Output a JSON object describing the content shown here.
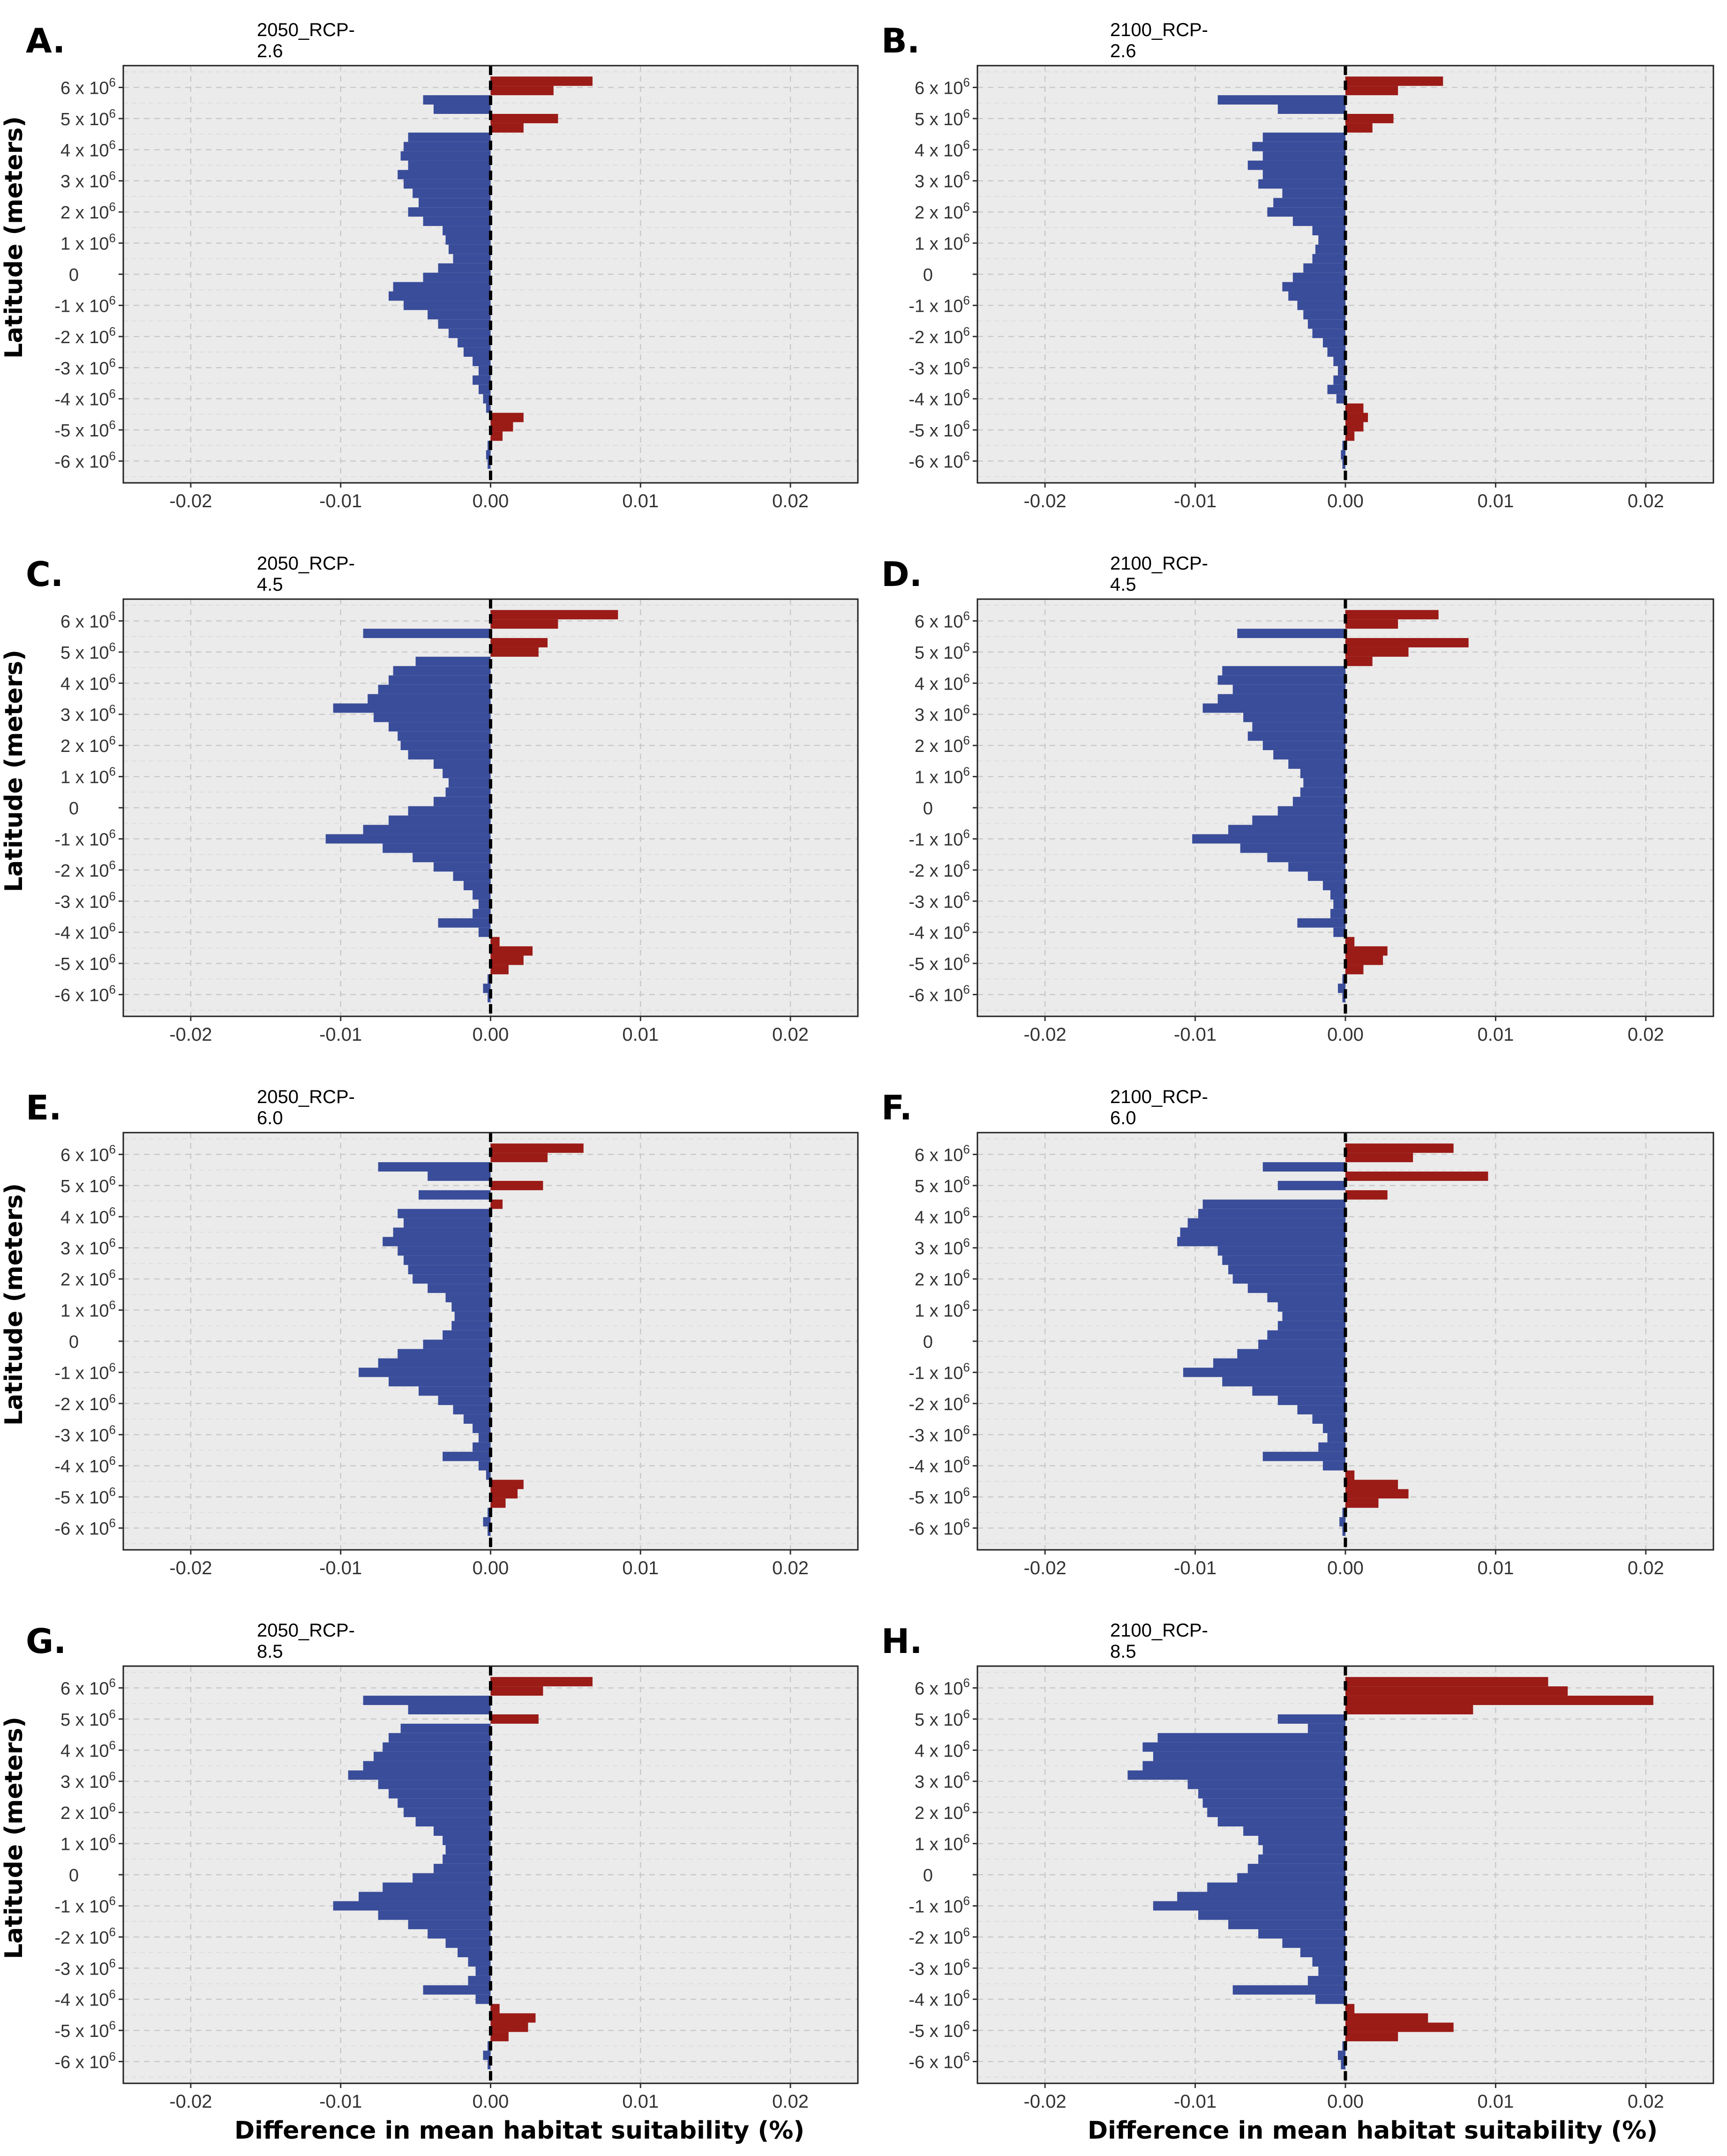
{
  "figure": {
    "ylabel": "Latitude (meters)",
    "xlabel": "Difference in mean habitat suitability (%)"
  },
  "chart_data": [
    {
      "type": "bar",
      "orientation": "horizontal",
      "panel": "A.",
      "title": "2050_RCP-2.6",
      "xlim": [
        -0.0245,
        0.0245
      ],
      "ylim": [
        -6.7,
        6.7
      ],
      "xticks": [
        "-0.02",
        "-0.01",
        "0.00",
        "0.01",
        "0.02"
      ],
      "yticks": [
        "6 x 10^6",
        "5 x 10^6",
        "4 x 10^6",
        "3 x 10^6",
        "2 x 10^6",
        "1 x 10^6",
        "0",
        "-1 x 10^6",
        "-2 x 10^6",
        "-3 x 10^6",
        "-4 x 10^6",
        "-5 x 10^6",
        "-6 x 10^6"
      ],
      "latitude_1e6": [
        6.2,
        5.9,
        5.6,
        5.3,
        5.0,
        4.7,
        4.4,
        4.1,
        3.8,
        3.5,
        3.2,
        2.9,
        2.6,
        2.3,
        2.0,
        1.7,
        1.4,
        1.1,
        0.8,
        0.5,
        0.2,
        -0.1,
        -0.4,
        -0.7,
        -1.0,
        -1.3,
        -1.6,
        -1.9,
        -2.2,
        -2.5,
        -2.8,
        -3.1,
        -3.4,
        -3.7,
        -4.0,
        -4.3,
        -4.6,
        -4.9,
        -5.2,
        -5.5,
        -5.8,
        -6.1
      ],
      "values": [
        0.0068,
        0.0042,
        -0.0045,
        -0.0038,
        0.0045,
        0.0022,
        -0.0055,
        -0.0058,
        -0.006,
        -0.0055,
        -0.0062,
        -0.0058,
        -0.0052,
        -0.0048,
        -0.0055,
        -0.0045,
        -0.0032,
        -0.003,
        -0.0028,
        -0.0025,
        -0.0035,
        -0.0045,
        -0.0065,
        -0.0068,
        -0.0058,
        -0.0042,
        -0.0035,
        -0.0028,
        -0.0022,
        -0.0018,
        -0.0012,
        -0.0008,
        -0.0012,
        -0.0008,
        -0.0005,
        -0.0003,
        0.0022,
        0.0015,
        0.0008,
        -0.0002,
        -0.0003,
        -0.0002
      ]
    },
    {
      "type": "bar",
      "orientation": "horizontal",
      "panel": "B.",
      "title": "2100_RCP-2.6",
      "xlim": [
        -0.0245,
        0.0245
      ],
      "ylim": [
        -6.7,
        6.7
      ],
      "xticks": [
        "-0.02",
        "-0.01",
        "0.00",
        "0.01",
        "0.02"
      ],
      "yticks": [
        "6 x 10^6",
        "5 x 10^6",
        "4 x 10^6",
        "3 x 10^6",
        "2 x 10^6",
        "1 x 10^6",
        "0",
        "-1 x 10^6",
        "-2 x 10^6",
        "-3 x 10^6",
        "-4 x 10^6",
        "-5 x 10^6",
        "-6 x 10^6"
      ],
      "latitude_1e6": [
        6.2,
        5.9,
        5.6,
        5.3,
        5.0,
        4.7,
        4.4,
        4.1,
        3.8,
        3.5,
        3.2,
        2.9,
        2.6,
        2.3,
        2.0,
        1.7,
        1.4,
        1.1,
        0.8,
        0.5,
        0.2,
        -0.1,
        -0.4,
        -0.7,
        -1.0,
        -1.3,
        -1.6,
        -1.9,
        -2.2,
        -2.5,
        -2.8,
        -3.1,
        -3.4,
        -3.7,
        -4.0,
        -4.3,
        -4.6,
        -4.9,
        -5.2,
        -5.5,
        -5.8,
        -6.1
      ],
      "values": [
        0.0065,
        0.0035,
        -0.0085,
        -0.0045,
        0.0032,
        0.0018,
        -0.0055,
        -0.0062,
        -0.0055,
        -0.0065,
        -0.0055,
        -0.0058,
        -0.0042,
        -0.0048,
        -0.0052,
        -0.0035,
        -0.0022,
        -0.0018,
        -0.002,
        -0.0022,
        -0.0028,
        -0.0035,
        -0.0042,
        -0.0038,
        -0.0032,
        -0.0028,
        -0.0025,
        -0.0022,
        -0.0015,
        -0.0012,
        -0.0008,
        -0.0005,
        -0.0008,
        -0.0012,
        -0.0006,
        0.0012,
        0.0015,
        0.0012,
        0.0006,
        -0.0002,
        -0.0003,
        -0.0002
      ]
    },
    {
      "type": "bar",
      "orientation": "horizontal",
      "panel": "C.",
      "title": "2050_RCP-4.5",
      "xlim": [
        -0.0245,
        0.0245
      ],
      "ylim": [
        -6.7,
        6.7
      ],
      "xticks": [
        "-0.02",
        "-0.01",
        "0.00",
        "0.01",
        "0.02"
      ],
      "yticks": [
        "6 x 10^6",
        "5 x 10^6",
        "4 x 10^6",
        "3 x 10^6",
        "2 x 10^6",
        "1 x 10^6",
        "0",
        "-1 x 10^6",
        "-2 x 10^6",
        "-3 x 10^6",
        "-4 x 10^6",
        "-5 x 10^6",
        "-6 x 10^6"
      ],
      "latitude_1e6": [
        6.2,
        5.9,
        5.6,
        5.3,
        5.0,
        4.7,
        4.4,
        4.1,
        3.8,
        3.5,
        3.2,
        2.9,
        2.6,
        2.3,
        2.0,
        1.7,
        1.4,
        1.1,
        0.8,
        0.5,
        0.2,
        -0.1,
        -0.4,
        -0.7,
        -1.0,
        -1.3,
        -1.6,
        -1.9,
        -2.2,
        -2.5,
        -2.8,
        -3.1,
        -3.4,
        -3.7,
        -4.0,
        -4.3,
        -4.6,
        -4.9,
        -5.2,
        -5.5,
        -5.8,
        -6.1
      ],
      "values": [
        0.0085,
        0.0045,
        -0.0085,
        0.0038,
        0.0032,
        -0.005,
        -0.0065,
        -0.0068,
        -0.0075,
        -0.0082,
        -0.0105,
        -0.0078,
        -0.0068,
        -0.0062,
        -0.006,
        -0.0055,
        -0.0038,
        -0.0032,
        -0.0028,
        -0.003,
        -0.0038,
        -0.0055,
        -0.0068,
        -0.0085,
        -0.011,
        -0.0072,
        -0.0052,
        -0.0038,
        -0.0025,
        -0.0018,
        -0.0012,
        -0.0008,
        -0.0012,
        -0.0035,
        -0.0008,
        0.0006,
        0.0028,
        0.0022,
        0.0012,
        -0.0002,
        -0.0005,
        -0.0002
      ]
    },
    {
      "type": "bar",
      "orientation": "horizontal",
      "panel": "D.",
      "title": "2100_RCP-4.5",
      "xlim": [
        -0.0245,
        0.0245
      ],
      "ylim": [
        -6.7,
        6.7
      ],
      "xticks": [
        "-0.02",
        "-0.01",
        "0.00",
        "0.01",
        "0.02"
      ],
      "yticks": [
        "6 x 10^6",
        "5 x 10^6",
        "4 x 10^6",
        "3 x 10^6",
        "2 x 10^6",
        "1 x 10^6",
        "0",
        "-1 x 10^6",
        "-2 x 10^6",
        "-3 x 10^6",
        "-4 x 10^6",
        "-5 x 10^6",
        "-6 x 10^6"
      ],
      "latitude_1e6": [
        6.2,
        5.9,
        5.6,
        5.3,
        5.0,
        4.7,
        4.4,
        4.1,
        3.8,
        3.5,
        3.2,
        2.9,
        2.6,
        2.3,
        2.0,
        1.7,
        1.4,
        1.1,
        0.8,
        0.5,
        0.2,
        -0.1,
        -0.4,
        -0.7,
        -1.0,
        -1.3,
        -1.6,
        -1.9,
        -2.2,
        -2.5,
        -2.8,
        -3.1,
        -3.4,
        -3.7,
        -4.0,
        -4.3,
        -4.6,
        -4.9,
        -5.2,
        -5.5,
        -5.8,
        -6.1
      ],
      "values": [
        0.0062,
        0.0035,
        -0.0072,
        0.0082,
        0.0042,
        0.0018,
        -0.0082,
        -0.0085,
        -0.0075,
        -0.0085,
        -0.0095,
        -0.0068,
        -0.0062,
        -0.0065,
        -0.0055,
        -0.0048,
        -0.0038,
        -0.003,
        -0.0028,
        -0.003,
        -0.0035,
        -0.0045,
        -0.0062,
        -0.0078,
        -0.0102,
        -0.007,
        -0.0052,
        -0.0038,
        -0.0025,
        -0.0015,
        -0.001,
        -0.0008,
        -0.001,
        -0.0032,
        -0.0008,
        0.0006,
        0.0028,
        0.0025,
        0.0012,
        -0.0002,
        -0.0005,
        -0.0002
      ]
    },
    {
      "type": "bar",
      "orientation": "horizontal",
      "panel": "E.",
      "title": "2050_RCP-6.0",
      "xlim": [
        -0.0245,
        0.0245
      ],
      "ylim": [
        -6.7,
        6.7
      ],
      "xticks": [
        "-0.02",
        "-0.01",
        "0.00",
        "0.01",
        "0.02"
      ],
      "yticks": [
        "6 x 10^6",
        "5 x 10^6",
        "4 x 10^6",
        "3 x 10^6",
        "2 x 10^6",
        "1 x 10^6",
        "0",
        "-1 x 10^6",
        "-2 x 10^6",
        "-3 x 10^6",
        "-4 x 10^6",
        "-5 x 10^6",
        "-6 x 10^6"
      ],
      "latitude_1e6": [
        6.2,
        5.9,
        5.6,
        5.3,
        5.0,
        4.7,
        4.4,
        4.1,
        3.8,
        3.5,
        3.2,
        2.9,
        2.6,
        2.3,
        2.0,
        1.7,
        1.4,
        1.1,
        0.8,
        0.5,
        0.2,
        -0.1,
        -0.4,
        -0.7,
        -1.0,
        -1.3,
        -1.6,
        -1.9,
        -2.2,
        -2.5,
        -2.8,
        -3.1,
        -3.4,
        -3.7,
        -4.0,
        -4.3,
        -4.6,
        -4.9,
        -5.2,
        -5.5,
        -5.8,
        -6.1
      ],
      "values": [
        0.0062,
        0.0038,
        -0.0075,
        -0.0042,
        0.0035,
        -0.0048,
        0.0008,
        -0.0062,
        -0.0058,
        -0.0065,
        -0.0072,
        -0.0062,
        -0.0058,
        -0.0055,
        -0.0052,
        -0.0042,
        -0.003,
        -0.0026,
        -0.0024,
        -0.0026,
        -0.0032,
        -0.0045,
        -0.0062,
        -0.0075,
        -0.0088,
        -0.0068,
        -0.0048,
        -0.0035,
        -0.0025,
        -0.0018,
        -0.0012,
        -0.0008,
        -0.0012,
        -0.0032,
        -0.0008,
        -0.0003,
        0.0022,
        0.0018,
        0.001,
        -0.0002,
        -0.0005,
        -0.0002
      ]
    },
    {
      "type": "bar",
      "orientation": "horizontal",
      "panel": "F.",
      "title": "2100_RCP-6.0",
      "xlim": [
        -0.0245,
        0.0245
      ],
      "ylim": [
        -6.7,
        6.7
      ],
      "xticks": [
        "-0.02",
        "-0.01",
        "0.00",
        "0.01",
        "0.02"
      ],
      "yticks": [
        "6 x 10^6",
        "5 x 10^6",
        "4 x 10^6",
        "3 x 10^6",
        "2 x 10^6",
        "1 x 10^6",
        "0",
        "-1 x 10^6",
        "-2 x 10^6",
        "-3 x 10^6",
        "-4 x 10^6",
        "-5 x 10^6",
        "-6 x 10^6"
      ],
      "latitude_1e6": [
        6.2,
        5.9,
        5.6,
        5.3,
        5.0,
        4.7,
        4.4,
        4.1,
        3.8,
        3.5,
        3.2,
        2.9,
        2.6,
        2.3,
        2.0,
        1.7,
        1.4,
        1.1,
        0.8,
        0.5,
        0.2,
        -0.1,
        -0.4,
        -0.7,
        -1.0,
        -1.3,
        -1.6,
        -1.9,
        -2.2,
        -2.5,
        -2.8,
        -3.1,
        -3.4,
        -3.7,
        -4.0,
        -4.3,
        -4.6,
        -4.9,
        -5.2,
        -5.5,
        -5.8,
        -6.1
      ],
      "values": [
        0.0072,
        0.0045,
        -0.0055,
        0.0095,
        -0.0045,
        0.0028,
        -0.0095,
        -0.0098,
        -0.0105,
        -0.011,
        -0.0112,
        -0.0085,
        -0.0082,
        -0.0078,
        -0.0075,
        -0.0065,
        -0.0052,
        -0.0045,
        -0.0042,
        -0.0045,
        -0.0052,
        -0.0058,
        -0.0072,
        -0.0088,
        -0.0108,
        -0.0082,
        -0.0062,
        -0.0045,
        -0.0032,
        -0.0022,
        -0.0015,
        -0.0012,
        -0.0018,
        -0.0055,
        -0.0015,
        0.0006,
        0.0035,
        0.0042,
        0.0022,
        -0.0002,
        -0.0004,
        -0.0002
      ]
    },
    {
      "type": "bar",
      "orientation": "horizontal",
      "panel": "G.",
      "title": "2050_RCP-8.5",
      "xlim": [
        -0.0245,
        0.0245
      ],
      "ylim": [
        -6.7,
        6.7
      ],
      "xticks": [
        "-0.02",
        "-0.01",
        "0.00",
        "0.01",
        "0.02"
      ],
      "yticks": [
        "6 x 10^6",
        "5 x 10^6",
        "4 x 10^6",
        "3 x 10^6",
        "2 x 10^6",
        "1 x 10^6",
        "0",
        "-1 x 10^6",
        "-2 x 10^6",
        "-3 x 10^6",
        "-4 x 10^6",
        "-5 x 10^6",
        "-6 x 10^6"
      ],
      "latitude_1e6": [
        6.2,
        5.9,
        5.6,
        5.3,
        5.0,
        4.7,
        4.4,
        4.1,
        3.8,
        3.5,
        3.2,
        2.9,
        2.6,
        2.3,
        2.0,
        1.7,
        1.4,
        1.1,
        0.8,
        0.5,
        0.2,
        -0.1,
        -0.4,
        -0.7,
        -1.0,
        -1.3,
        -1.6,
        -1.9,
        -2.2,
        -2.5,
        -2.8,
        -3.1,
        -3.4,
        -3.7,
        -4.0,
        -4.3,
        -4.6,
        -4.9,
        -5.2,
        -5.5,
        -5.8,
        -6.1
      ],
      "values": [
        0.0068,
        0.0035,
        -0.0085,
        -0.0055,
        0.0032,
        -0.006,
        -0.0068,
        -0.0072,
        -0.0078,
        -0.0085,
        -0.0095,
        -0.0075,
        -0.0068,
        -0.0062,
        -0.0058,
        -0.005,
        -0.0038,
        -0.0032,
        -0.003,
        -0.0032,
        -0.0038,
        -0.0052,
        -0.0072,
        -0.0088,
        -0.0105,
        -0.0075,
        -0.0055,
        -0.0042,
        -0.003,
        -0.0022,
        -0.0015,
        -0.001,
        -0.0015,
        -0.0045,
        -0.001,
        0.0006,
        0.003,
        0.0025,
        0.0012,
        -0.0002,
        -0.0005,
        -0.0002
      ]
    },
    {
      "type": "bar",
      "orientation": "horizontal",
      "panel": "H.",
      "title": "2100_RCP-8.5",
      "xlim": [
        -0.0245,
        0.0245
      ],
      "ylim": [
        -6.7,
        6.7
      ],
      "xticks": [
        "-0.02",
        "-0.01",
        "0.00",
        "0.01",
        "0.02"
      ],
      "yticks": [
        "6 x 10^6",
        "5 x 10^6",
        "4 x 10^6",
        "3 x 10^6",
        "2 x 10^6",
        "1 x 10^6",
        "0",
        "-1 x 10^6",
        "-2 x 10^6",
        "-3 x 10^6",
        "-4 x 10^6",
        "-5 x 10^6",
        "-6 x 10^6"
      ],
      "latitude_1e6": [
        6.2,
        5.9,
        5.6,
        5.3,
        5.0,
        4.7,
        4.4,
        4.1,
        3.8,
        3.5,
        3.2,
        2.9,
        2.6,
        2.3,
        2.0,
        1.7,
        1.4,
        1.1,
        0.8,
        0.5,
        0.2,
        -0.1,
        -0.4,
        -0.7,
        -1.0,
        -1.3,
        -1.6,
        -1.9,
        -2.2,
        -2.5,
        -2.8,
        -3.1,
        -3.4,
        -3.7,
        -4.0,
        -4.3,
        -4.6,
        -4.9,
        -5.2,
        -5.5,
        -5.8,
        -6.1
      ],
      "values": [
        0.0135,
        0.0148,
        0.0205,
        0.0085,
        -0.0045,
        -0.0025,
        -0.0125,
        -0.0135,
        -0.0128,
        -0.0135,
        -0.0145,
        -0.0105,
        -0.0098,
        -0.0095,
        -0.0092,
        -0.0085,
        -0.0068,
        -0.0058,
        -0.0055,
        -0.0058,
        -0.0065,
        -0.0072,
        -0.0092,
        -0.0112,
        -0.0128,
        -0.0098,
        -0.0078,
        -0.0058,
        -0.0042,
        -0.003,
        -0.0022,
        -0.0018,
        -0.0025,
        -0.0075,
        -0.002,
        0.0006,
        0.0055,
        0.0072,
        0.0035,
        -0.0002,
        -0.0005,
        -0.0003
      ]
    }
  ]
}
